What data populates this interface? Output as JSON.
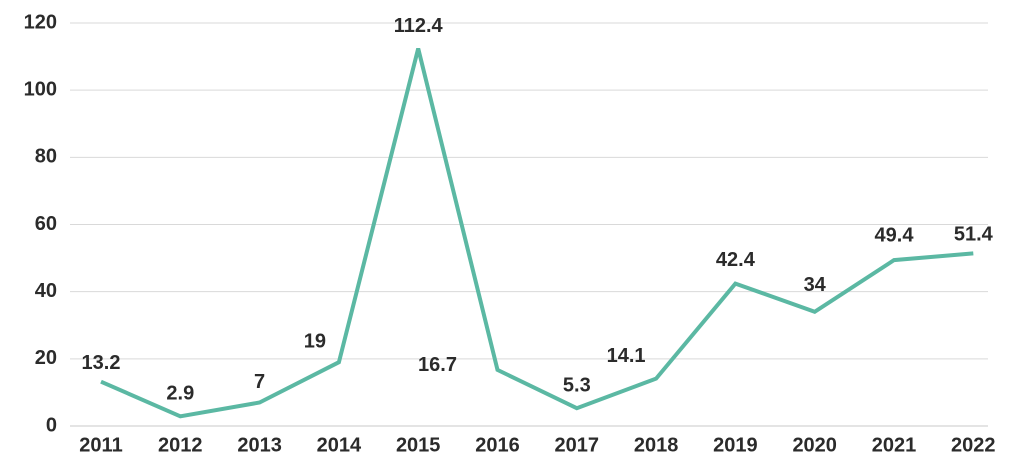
{
  "chart_data": {
    "type": "line",
    "title": "",
    "xlabel": "",
    "ylabel": "",
    "categories": [
      "2011",
      "2012",
      "2013",
      "2014",
      "2015",
      "2016",
      "2017",
      "2018",
      "2019",
      "2020",
      "2021",
      "2022"
    ],
    "series": [
      {
        "values": [
          13.2,
          2.9,
          7,
          19,
          112.4,
          16.7,
          5.3,
          14.1,
          42.4,
          34,
          49.4,
          51.4
        ],
        "labels": [
          "13.2",
          "2.9",
          "7",
          "19",
          "112.4",
          "16.7",
          "5.3",
          "14.1",
          "42.4",
          "34",
          "49.4",
          "51.4"
        ],
        "color": "#5bb8a3"
      }
    ],
    "ylim": [
      0,
      120
    ],
    "yticks": [
      0,
      20,
      40,
      60,
      80,
      100,
      120
    ],
    "ytick_labels": [
      "0",
      "20",
      "40",
      "60",
      "80",
      "100",
      "120"
    ],
    "grid": true,
    "legend": "none"
  }
}
